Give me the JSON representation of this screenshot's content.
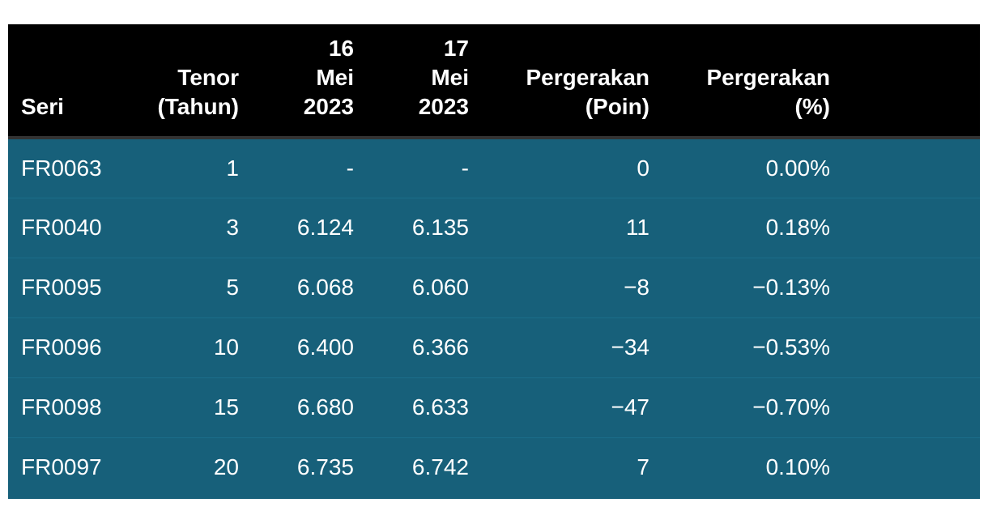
{
  "table": {
    "headers": {
      "seri": "Seri",
      "tenor": "Tenor\n(Tahun)",
      "d16": "16\nMei\n2023",
      "d17": "17\nMei\n2023",
      "poin": "Pergerakan\n(Poin)",
      "pct": "Pergerakan\n(%)"
    },
    "rows": [
      {
        "seri": "FR0063",
        "tenor": "1",
        "d16": "-",
        "d17": "-",
        "poin": "0",
        "pct": "0.00%"
      },
      {
        "seri": "FR0040",
        "tenor": "3",
        "d16": "6.124",
        "d17": "6.135",
        "poin": "11",
        "pct": "0.18%"
      },
      {
        "seri": "FR0095",
        "tenor": "5",
        "d16": "6.068",
        "d17": "6.060",
        "poin": "−8",
        "pct": "−0.13%"
      },
      {
        "seri": "FR0096",
        "tenor": "10",
        "d16": "6.400",
        "d17": "6.366",
        "poin": "−34",
        "pct": "−0.53%"
      },
      {
        "seri": "FR0098",
        "tenor": "15",
        "d16": "6.680",
        "d17": "6.633",
        "poin": "−47",
        "pct": "−0.70%"
      },
      {
        "seri": "FR0097",
        "tenor": "20",
        "d16": "6.735",
        "d17": "6.742",
        "poin": "7",
        "pct": "0.10%"
      }
    ]
  },
  "colors": {
    "header_bg": "#000000",
    "body_bg": "#17607a",
    "text": "#ffffff"
  }
}
